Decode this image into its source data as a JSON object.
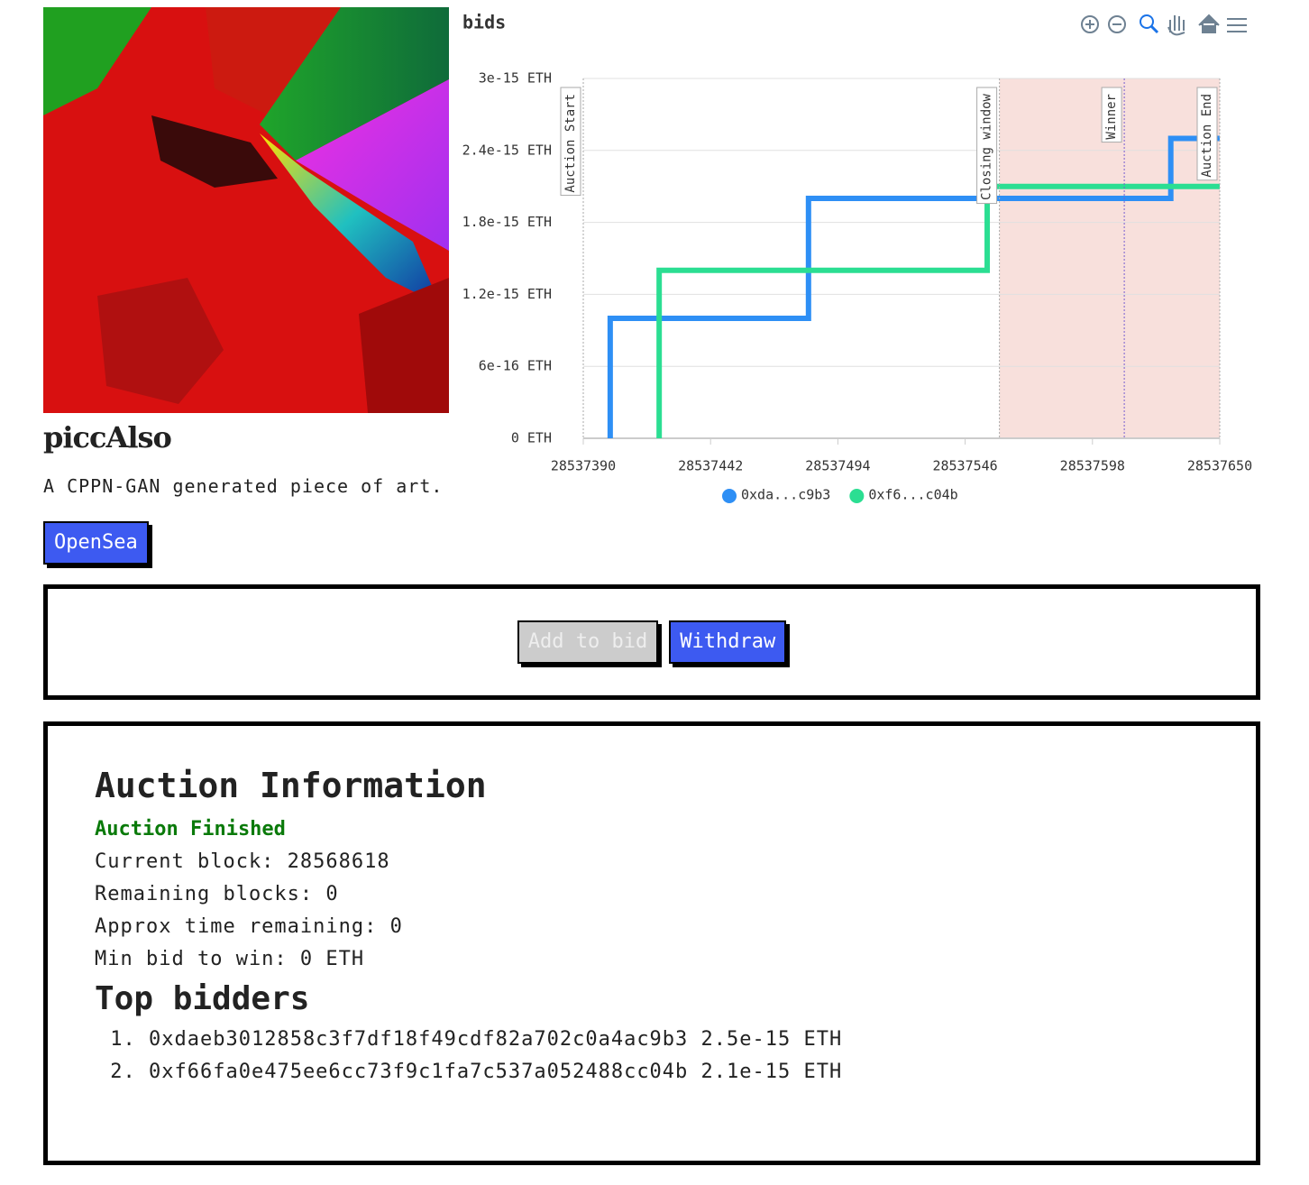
{
  "header": {
    "title": "piccAlso",
    "description": "A CPPN-GAN generated piece of art.",
    "link": "OpenSea"
  },
  "chart_data": {
    "type": "line",
    "title": "bids",
    "xlim": [
      28537390,
      28537650
    ],
    "xticks": [
      28537390,
      28537442,
      28537494,
      28537546,
      28537598,
      28537650
    ],
    "ylim": [
      0,
      3e-15
    ],
    "yticks": [
      {
        "value": 0,
        "label": "0 ETH"
      },
      {
        "value": 6e-16,
        "label": "6e-16 ETH"
      },
      {
        "value": 1.2e-15,
        "label": "1.2e-15 ETH"
      },
      {
        "value": 1.8e-15,
        "label": "1.8e-15 ETH"
      },
      {
        "value": 2.4e-15,
        "label": "2.4e-15 ETH"
      },
      {
        "value": 3e-15,
        "label": "3e-15 ETH"
      }
    ],
    "grid": true,
    "series": [
      {
        "name": "0xda...c9b3",
        "color": "#2e8ff5",
        "x": [
          28537401,
          28537401,
          28537482,
          28537482,
          28537630,
          28537630,
          28537650
        ],
        "values": [
          0,
          1e-15,
          1e-15,
          2e-15,
          2e-15,
          2.5e-15,
          2.5e-15
        ]
      },
      {
        "name": "0xf6...c04b",
        "color": "#2bde92",
        "x": [
          28537421,
          28537421,
          28537555,
          28537555,
          28537650
        ],
        "values": [
          0,
          1.4e-15,
          1.4e-15,
          2.1e-15,
          2.1e-15
        ]
      }
    ],
    "region": [
      28537560,
      28537650
    ],
    "annotations": [
      {
        "x": 28537390,
        "label": "Auction Start"
      },
      {
        "x": 28537560,
        "label": "Closing window"
      },
      {
        "x": 28537611,
        "label": "Winner"
      },
      {
        "x": 28537650,
        "label": "Auction End"
      }
    ]
  },
  "actions": [
    "Add to bid",
    "Withdraw"
  ],
  "auction": {
    "title": "Auction Information",
    "status": "Auction Finished",
    "lines": [
      "Current block: 28568618",
      "Remaining blocks: 0",
      "Approx time remaining: 0",
      "Min bid to win: 0 ETH"
    ],
    "bidders_title": "Top bidders",
    "bidders": [
      {
        "address": "0xdaeb3012858c3f7df18f49cdf82a702c0a4ac9b3",
        "amount": "2.5e-15 ETH"
      },
      {
        "address": "0xf66fa0e475ee6cc73f9c1fa7c537a052488cc04b",
        "amount": "2.1e-15 ETH"
      }
    ]
  }
}
